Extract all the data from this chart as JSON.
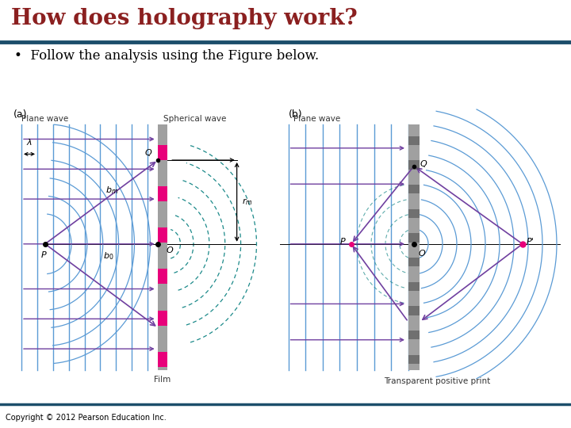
{
  "title": "How does holography work?",
  "subtitle": "•  Follow the analysis using the Figure below.",
  "copyright": "Copyright © 2012 Pearson Education Inc.",
  "title_color": "#8B2020",
  "title_line_color": "#1C4E6B",
  "bg_color": "#FFFFFF",
  "plane_wave_color": "#5B9BD5",
  "arrow_color": "#7040A0",
  "film_color_pink": "#E8007A",
  "film_color_gray": "#A0A0A0",
  "spherical_wave_color": "#1C8A8A",
  "line_color": "#000000",
  "text_color": "#333333"
}
